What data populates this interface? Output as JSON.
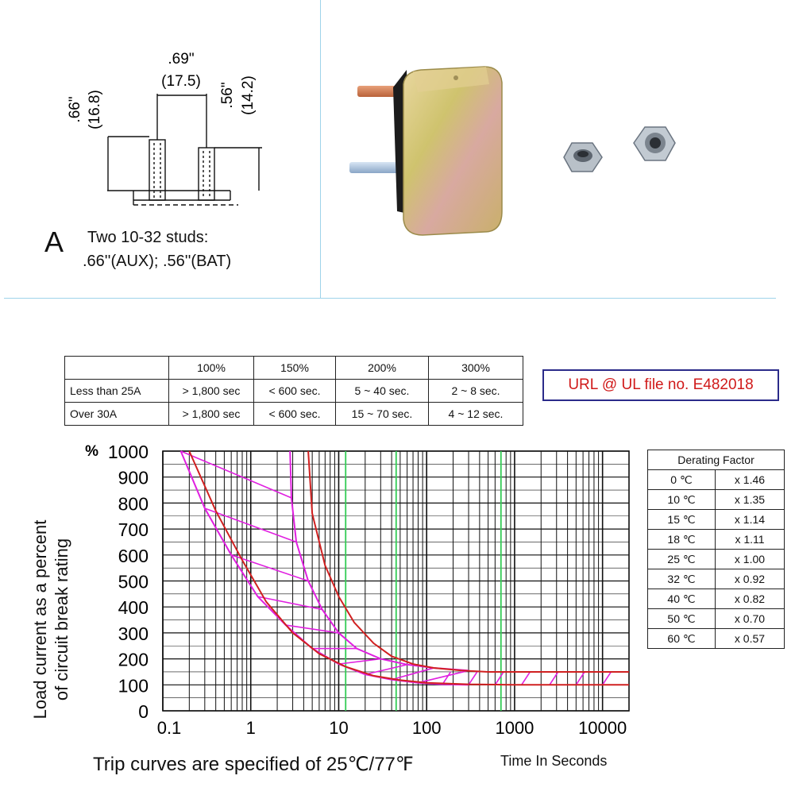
{
  "diagram": {
    "top_width_in": ".69\"",
    "top_width_mm": "(17.5)",
    "left_height_in": ".66\"",
    "left_height_mm": "(16.8)",
    "right_height_in": ".56\"",
    "right_height_mm": "(14.2)",
    "option_letter": "A",
    "studs_line1": "Two 10-32 studs:",
    "studs_line2": ".66''(AUX); .56''(BAT)"
  },
  "trip_table": {
    "headers": [
      "",
      "100%",
      "150%",
      "200%",
      "300%"
    ],
    "rows": [
      [
        "Less than 25A",
        "> 1,800 sec",
        "< 600 sec.",
        "5 ~ 40 sec.",
        "2 ~ 8 sec."
      ],
      [
        "Over 30A",
        "> 1,800 sec",
        "< 600 sec.",
        "15 ~ 70 sec.",
        "4 ~ 12 sec."
      ]
    ]
  },
  "ul_note": "URL @ UL file no. E482018",
  "derating": {
    "title": "Derating Factor",
    "rows": [
      [
        "0 ℃",
        "x 1.46"
      ],
      [
        "10 ℃",
        "x 1.35"
      ],
      [
        "15 ℃",
        "x 1.14"
      ],
      [
        "18 ℃",
        "x 1.11"
      ],
      [
        "25 ℃",
        "x 1.00"
      ],
      [
        "32 ℃",
        "x 0.92"
      ],
      [
        "40 ℃",
        "x 0.82"
      ],
      [
        "50 ℃",
        "x 0.70"
      ],
      [
        "60 ℃",
        "x 0.57"
      ]
    ]
  },
  "footer_note": "Trip curves are specified of 25℃/77℉",
  "colors": {
    "red_curve": "#d02020",
    "band": "#e020e0",
    "highlight_grid": "#33cc55",
    "grid": "#111111"
  },
  "chart_data": {
    "type": "line",
    "xscale": "log",
    "xlim": [
      0.1,
      20000
    ],
    "ylim": [
      0,
      1000
    ],
    "xticks": [
      0.1,
      1,
      10,
      100,
      1000,
      10000
    ],
    "xtick_labels": [
      "0.1",
      "1",
      "10",
      "100",
      "1000",
      "10000"
    ],
    "yticks": [
      0,
      100,
      200,
      300,
      400,
      500,
      600,
      700,
      800,
      900,
      1000
    ],
    "ytick_labels": [
      "0",
      "100",
      "200",
      "300",
      "400",
      "500",
      "600",
      "700",
      "800",
      "900",
      "1000"
    ],
    "y_unit": "%",
    "ylabel_line1": "Load current as a percent",
    "ylabel_line2": "of circuit break rating",
    "xlabel": "Time In Seconds",
    "grid": true,
    "highlight_x": [
      12,
      45,
      700
    ],
    "series": [
      {
        "x": [
          0.2,
          0.4,
          0.8,
          1.5,
          3,
          6,
          12,
          25,
          50,
          100,
          300,
          1000,
          20000
        ],
        "y": [
          1000,
          770,
          580,
          420,
          300,
          220,
          170,
          135,
          118,
          108,
          102,
          100,
          100
        ]
      },
      {
        "x": [
          4.5,
          5,
          7,
          10,
          15,
          25,
          40,
          70,
          120,
          250,
          500,
          1000,
          20000
        ],
        "y": [
          1000,
          760,
          560,
          440,
          340,
          260,
          210,
          180,
          165,
          155,
          150,
          150,
          150
        ]
      },
      {
        "x": [
          0.16,
          0.3,
          0.6,
          1.2,
          2.5,
          5,
          10,
          20,
          40,
          80,
          150,
          300
        ],
        "y": [
          1000,
          780,
          600,
          440,
          330,
          240,
          180,
          140,
          120,
          108,
          102,
          100
        ]
      },
      {
        "x": [
          2.8,
          2.9,
          3.3,
          4.5,
          6.5,
          10,
          16,
          30,
          60,
          120,
          300
        ],
        "y": [
          1000,
          820,
          650,
          500,
          390,
          300,
          240,
          200,
          178,
          165,
          155
        ]
      }
    ]
  }
}
